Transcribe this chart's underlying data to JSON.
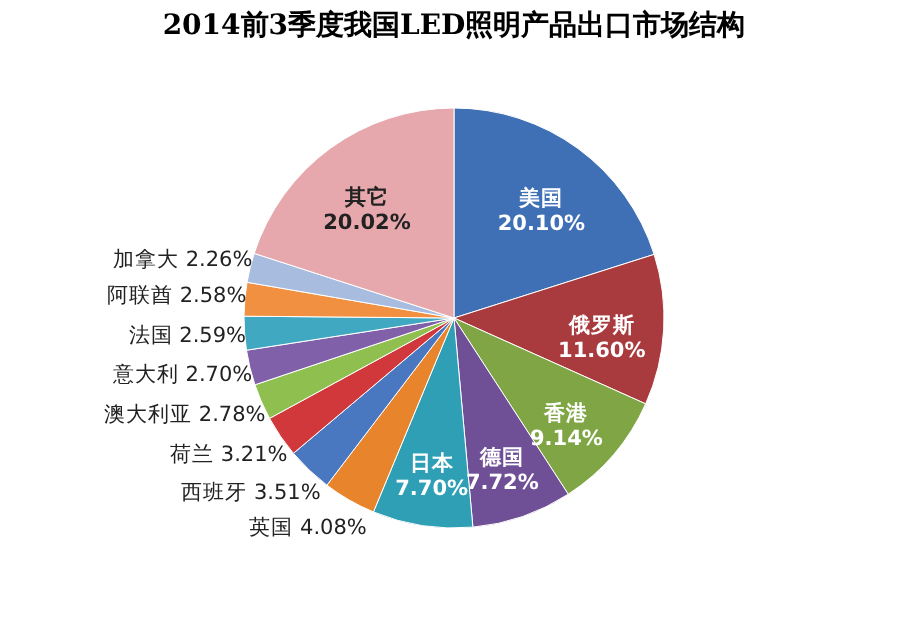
{
  "chart_data": {
    "type": "pie",
    "title": "2014前3季度我国LED照明产品出口市场结构",
    "categories": [
      "美国",
      "俄罗斯",
      "香港",
      "德国",
      "日本",
      "英国",
      "西班牙",
      "荷兰",
      "澳大利亚",
      "意大利",
      "法国",
      "阿联酋",
      "加拿大",
      "其它"
    ],
    "values": [
      20.1,
      11.6,
      9.14,
      7.72,
      7.7,
      4.08,
      3.51,
      3.21,
      2.78,
      2.7,
      2.59,
      2.58,
      2.26,
      20.02
    ],
    "value_labels": [
      "20.10%",
      "11.60%",
      "9.14%",
      "7.72%",
      "7.70%",
      "4.08%",
      "3.51%",
      "3.21%",
      "2.78%",
      "2.70%",
      "2.59%",
      "2.58%",
      "2.26%",
      "20.02%"
    ],
    "colors": [
      "#3f6fb5",
      "#a93a3e",
      "#7fa545",
      "#6f4f96",
      "#2e9fb5",
      "#e8842c",
      "#4a78c0",
      "#d0383c",
      "#8fbf4f",
      "#8060a8",
      "#40a8c0",
      "#f09040",
      "#a8bce0",
      "#e6a8ac"
    ]
  }
}
